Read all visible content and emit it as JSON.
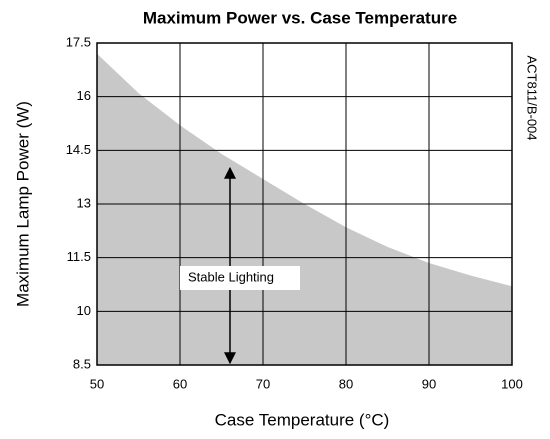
{
  "chart_data": {
    "type": "area",
    "title": "Maximum Power vs. Case Temperature",
    "x_label": "Case Temperature (°C)",
    "y_label": "Maximum Lamp Power (W)",
    "annotations": [
      "Stable Lighting",
      "ACT811/B-004"
    ],
    "x": [
      50,
      55,
      60,
      65,
      70,
      75,
      80,
      85,
      90,
      95,
      100
    ],
    "values": [
      17.2,
      16.1,
      15.2,
      14.4,
      13.7,
      13.0,
      12.35,
      11.8,
      11.35,
      11.0,
      10.7
    ],
    "color": "#c8c8c8",
    "xlim": [
      50,
      100
    ],
    "xticks": [
      50,
      60,
      70,
      80,
      90,
      100
    ],
    "ylim": [
      8.5,
      17.5
    ],
    "yticks": [
      8.5,
      10,
      11.5,
      13,
      14.5,
      16,
      17.5
    ],
    "grid": true
  }
}
